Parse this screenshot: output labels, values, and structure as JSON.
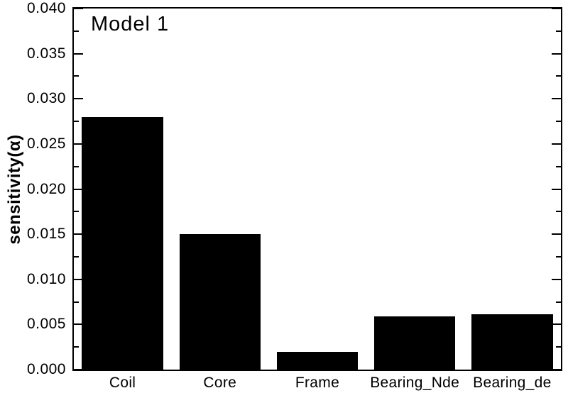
{
  "chart_data": {
    "type": "bar",
    "title": "Model 1",
    "xlabel": "",
    "ylabel": "sensitivity(α)",
    "categories": [
      "Coil",
      "Core",
      "Frame",
      "Bearing_Nde",
      "Bearing_de"
    ],
    "values": [
      0.028,
      0.015,
      0.002,
      0.0059,
      0.0061
    ],
    "ylim": [
      0,
      0.04
    ],
    "ytick_interval": 0.005,
    "yminor_tick_interval": 0.0025,
    "ytick_labels": [
      "0.000",
      "0.005",
      "0.010",
      "0.015",
      "0.020",
      "0.025",
      "0.030",
      "0.035",
      "0.040"
    ],
    "bar_color": "#000000",
    "background_color": "#ffffff",
    "axis_color": "#000000",
    "grid": false,
    "legend": false,
    "bar_width_fraction": 0.833,
    "tick_direction": "in"
  }
}
